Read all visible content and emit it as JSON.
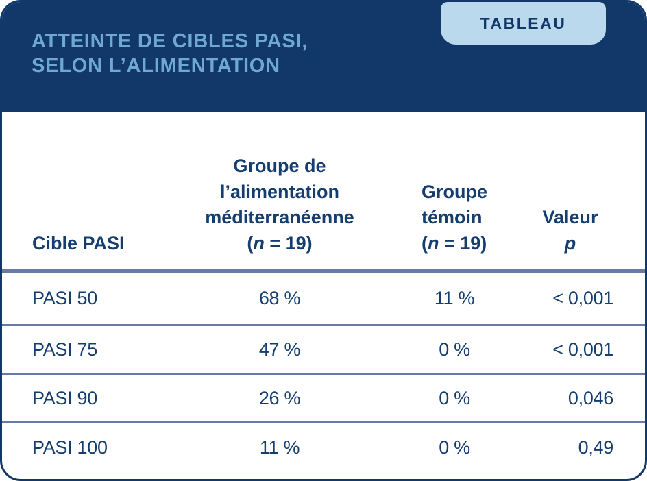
{
  "badge": {
    "label": "TABLEAU"
  },
  "title": {
    "line1": "ATTEINTE DE CIBLES PASI,",
    "line2": "SELON L’ALIMENTATION"
  },
  "colors": {
    "header_navy": "#12386A",
    "title_blue": "#6FA9D2",
    "badge_bg": "#BBD9EC",
    "divider_gray_blue": "#697BA5",
    "text_navy": "#153E6E",
    "background": "#FFFFFF"
  },
  "table": {
    "columns": {
      "target": {
        "label": "Cible PASI"
      },
      "med": {
        "line1": "Groupe de",
        "line2": "l’alimentation",
        "line3": "méditerranéenne",
        "n_prefix": "(",
        "n_italic": "n",
        "n_suffix": " = 19)"
      },
      "control": {
        "line1": "Groupe",
        "line2": "témoin",
        "n_prefix": "(",
        "n_italic": "n",
        "n_suffix": " = 19)"
      },
      "p": {
        "line1": "Valeur",
        "italic": "p"
      }
    },
    "rows": [
      {
        "target": "PASI 50",
        "med": "68 %",
        "control": "11 %",
        "p": "< 0,001"
      },
      {
        "target": "PASI 75",
        "med": "47 %",
        "control": "0 %",
        "p": "< 0,001"
      },
      {
        "target": "PASI 90",
        "med": "26 %",
        "control": "0 %",
        "p": "0,046"
      },
      {
        "target": "PASI 100",
        "med": "11 %",
        "control": "0 %",
        "p": "0,49"
      }
    ]
  },
  "chart_data": {
    "type": "table",
    "title": "ATTEINTE DE CIBLES PASI, SELON L’ALIMENTATION",
    "columns": [
      "Cible PASI",
      "Groupe de l’alimentation méditerranéenne (n = 19)",
      "Groupe témoin (n = 19)",
      "Valeur p"
    ],
    "rows": [
      [
        "PASI 50",
        "68 %",
        "11 %",
        "< 0,001"
      ],
      [
        "PASI 75",
        "47 %",
        "0 %",
        "< 0,001"
      ],
      [
        "PASI 90",
        "26 %",
        "0 %",
        "0,046"
      ],
      [
        "PASI 100",
        "11 %",
        "0 %",
        "0,49"
      ]
    ]
  }
}
